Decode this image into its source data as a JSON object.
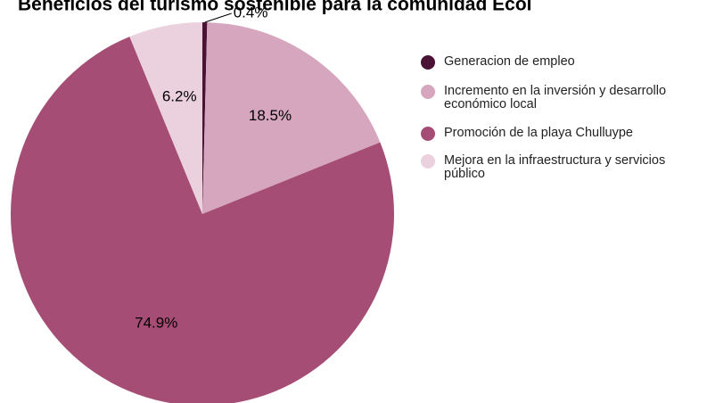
{
  "chart_data": {
    "type": "pie",
    "title": "Beneficios del turismo sostenible para la comunidad Ecol",
    "categories": [
      "Generacion de empleo",
      "Incremento en la inversión y desarrollo económico local",
      "Promoción de la playa Chulluype",
      "Mejora en la infraestructura y servicios público"
    ],
    "values": [
      0.4,
      18.5,
      74.9,
      6.2
    ],
    "value_labels": [
      "0.4%",
      "18.5%",
      "74.9%",
      "6.2%"
    ],
    "colors": [
      "#4a1234",
      "#d6a6be",
      "#a64d75",
      "#ebd1dd"
    ],
    "legend": "right"
  }
}
